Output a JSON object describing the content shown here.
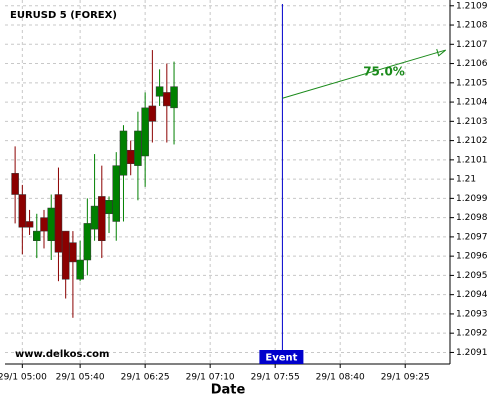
{
  "chart_data": {
    "type": "candlestick",
    "title": "EURUSD 5 (FOREX)",
    "xlabel": "Date",
    "watermark": "www.delkos.com",
    "x": [
      "29/1 04:55",
      "29/1 05:00",
      "29/1 05:05",
      "29/1 05:10",
      "29/1 05:15",
      "29/1 05:20",
      "29/1 05:25",
      "29/1 05:30",
      "29/1 05:35",
      "29/1 05:40",
      "29/1 05:45",
      "29/1 05:50",
      "29/1 05:55",
      "29/1 06:00",
      "29/1 06:05",
      "29/1 06:10",
      "29/1 06:15",
      "29/1 06:20",
      "29/1 06:25",
      "29/1 06:30",
      "29/1 06:35",
      "29/1 06:40",
      "29/1 06:45"
    ],
    "open": [
      1.21003,
      1.20992,
      1.20978,
      1.20968,
      1.2098,
      1.20968,
      1.20992,
      1.20973,
      1.20967,
      1.20948,
      1.20958,
      1.20974,
      1.20991,
      1.20982,
      1.20978,
      1.21002,
      1.21015,
      1.21007,
      1.21012,
      1.21038,
      1.21043,
      1.21045,
      1.21037
    ],
    "high": [
      1.21017,
      1.20997,
      1.20984,
      1.20982,
      1.20984,
      1.20992,
      1.21006,
      1.20973,
      1.20973,
      1.20968,
      1.2099,
      1.21013,
      1.21007,
      1.20991,
      1.21014,
      1.21028,
      1.2102,
      1.21035,
      1.21045,
      1.21067,
      1.21057,
      1.2106,
      1.21061
    ],
    "low": [
      1.20977,
      1.20961,
      1.20971,
      1.20959,
      1.20964,
      1.20958,
      1.20947,
      1.20938,
      1.20928,
      1.20947,
      1.2095,
      1.20968,
      1.20959,
      1.20972,
      1.20968,
      1.20978,
      1.21002,
      1.20989,
      1.20996,
      1.21019,
      1.21038,
      1.21019,
      1.21018
    ],
    "close": [
      1.20992,
      1.20975,
      1.20975,
      1.20973,
      1.20973,
      1.20985,
      1.20962,
      1.20948,
      1.20957,
      1.20958,
      1.20977,
      1.20986,
      1.20968,
      1.20989,
      1.21007,
      1.21025,
      1.21008,
      1.21025,
      1.21037,
      1.2103,
      1.21048,
      1.21038,
      1.21048
    ],
    "up_color": "#008000",
    "down_color": "#8b0000",
    "xlim": [
      "29/1 04:48",
      "29/1 09:56"
    ],
    "xticks": [
      "29/1 05:00",
      "29/1 05:40",
      "29/1 06:25",
      "29/1 07:10",
      "29/1 07:55",
      "29/1 08:40",
      "29/1 09:25"
    ],
    "ylim": [
      1.20904,
      1.21093
    ],
    "yticks": [
      1.2091,
      1.2092,
      1.2093,
      1.2094,
      1.2095,
      1.2096,
      1.2097,
      1.2098,
      1.2099,
      1.21,
      1.2101,
      1.2102,
      1.2103,
      1.2104,
      1.2105,
      1.2106,
      1.2107,
      1.2108,
      1.2109
    ],
    "grid": true,
    "event": {
      "x": "29/1 08:00",
      "label": "Event",
      "color": "#0000cc"
    },
    "forecast": {
      "x": [
        "29/1 08:00",
        "29/1 09:53"
      ],
      "y": [
        1.21042,
        1.21067
      ],
      "label": "75.0%",
      "color": "#1a8a1a"
    }
  }
}
